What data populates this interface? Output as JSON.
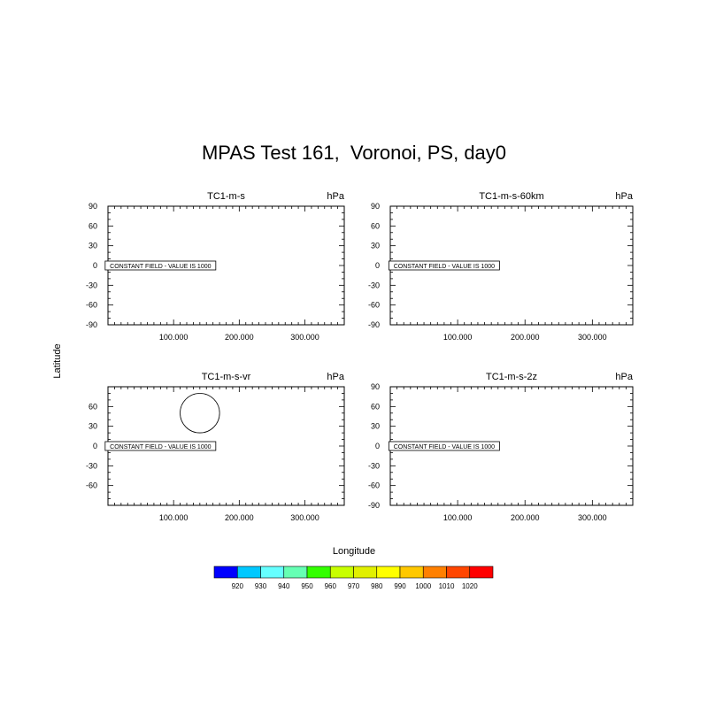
{
  "title": "MPAS Test 161,  Voronoi, PS, day0",
  "ylabel": "Latitude",
  "xlabel": "Longitude",
  "chart_data": [
    {
      "type": "contour",
      "title": "TC1-m-s",
      "units": "hPa",
      "annotation": "CONSTANT FIELD - VALUE IS 1000",
      "xlim": [
        0,
        360
      ],
      "ylim": [
        -90,
        90
      ],
      "xticks": [
        "100.000",
        "200.000",
        "300.000"
      ],
      "yticks": [
        "90",
        "60",
        "30",
        "0",
        "-30",
        "-60",
        "-90"
      ],
      "circles": []
    },
    {
      "type": "contour",
      "title": "TC1-m-s-60km",
      "units": "hPa",
      "annotation": "CONSTANT FIELD - VALUE IS 1000",
      "xlim": [
        0,
        360
      ],
      "ylim": [
        -90,
        90
      ],
      "xticks": [
        "100.000",
        "200.000",
        "300.000"
      ],
      "yticks": [
        "90",
        "60",
        "30",
        "0",
        "-30",
        "-60",
        "-90"
      ],
      "circles": []
    },
    {
      "type": "contour",
      "title": "TC1-m-s-vr",
      "units": "hPa",
      "annotation": "CONSTANT FIELD - VALUE IS 1000",
      "xlim": [
        0,
        360
      ],
      "ylim": [
        -90,
        90
      ],
      "xticks": [
        "100.000",
        "200.000",
        "300.000"
      ],
      "yticks": [
        "60",
        "30",
        "0",
        "-30",
        "-60"
      ],
      "circles": [
        {
          "lon": 140,
          "lat": 50,
          "radius_deg": 30
        }
      ]
    },
    {
      "type": "contour",
      "title": "TC1-m-s-2z",
      "units": "hPa",
      "annotation": "CONSTANT FIELD - VALUE IS 1000",
      "xlim": [
        0,
        360
      ],
      "ylim": [
        -90,
        90
      ],
      "xticks": [
        "100.000",
        "200.000",
        "300.000"
      ],
      "yticks": [
        "90",
        "60",
        "30",
        "0",
        "-30",
        "-60",
        "-90"
      ],
      "circles": []
    }
  ],
  "colorbar": {
    "labels": [
      "920",
      "930",
      "940",
      "950",
      "960",
      "970",
      "980",
      "990",
      "1000",
      "1010",
      "1020"
    ],
    "colors": [
      "#0000ff",
      "#00c8ff",
      "#66ffff",
      "#66ffb4",
      "#33ff00",
      "#c8ff00",
      "#e1f000",
      "#ffff00",
      "#ffc800",
      "#ff8000",
      "#ff4600",
      "#ff0000"
    ]
  }
}
